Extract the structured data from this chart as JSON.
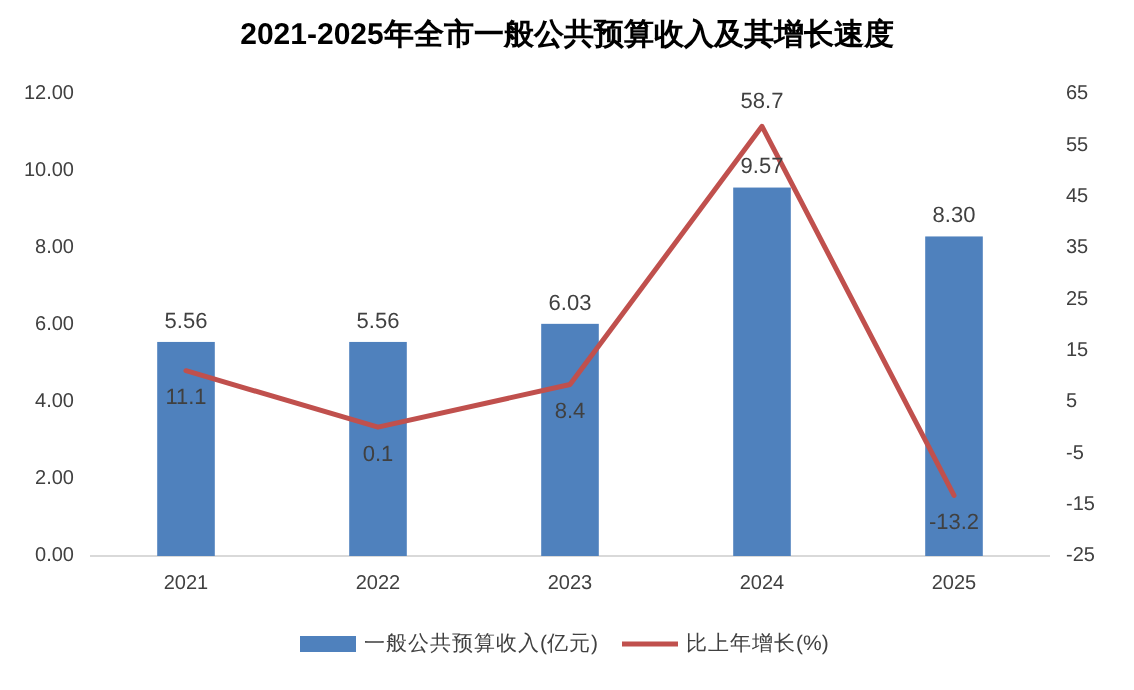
{
  "chart_data": {
    "type": "bar",
    "title": "2021-2025年全市一般公共预算收入及其增长速度",
    "categories": [
      "2021",
      "2022",
      "2023",
      "2024",
      "2025"
    ],
    "series": [
      {
        "name": "一般公共预算收入(亿元)",
        "color": "#4f81bd",
        "values": [
          5.56,
          5.56,
          6.03,
          9.57,
          8.3
        ]
      },
      {
        "name": "比上年增长(%)",
        "type": "line",
        "axis": "y2",
        "color": "#c0504d",
        "values": [
          11.1,
          0.1,
          8.4,
          58.7,
          -13.2
        ]
      }
    ],
    "value_labels": [
      [
        "5.56",
        "5.56",
        "6.03",
        "9.57",
        "8.30"
      ],
      [
        "11.1",
        "0.1",
        "8.4",
        "58.7",
        "-13.2"
      ]
    ],
    "ylim": [
      0,
      12
    ],
    "yticks": [
      {
        "value": 0,
        "label": "0.00"
      },
      {
        "value": 2,
        "label": "2.00"
      },
      {
        "value": 4,
        "label": "4.00"
      },
      {
        "value": 6,
        "label": "6.00"
      },
      {
        "value": 8,
        "label": "8.00"
      },
      {
        "value": 10,
        "label": "10.00"
      },
      {
        "value": 12,
        "label": "12.00"
      }
    ],
    "y2lim": [
      -25,
      65
    ],
    "y2ticks": [
      -25,
      -15,
      -5,
      5,
      15,
      25,
      35,
      45,
      55,
      65
    ],
    "legend": "bottom"
  }
}
